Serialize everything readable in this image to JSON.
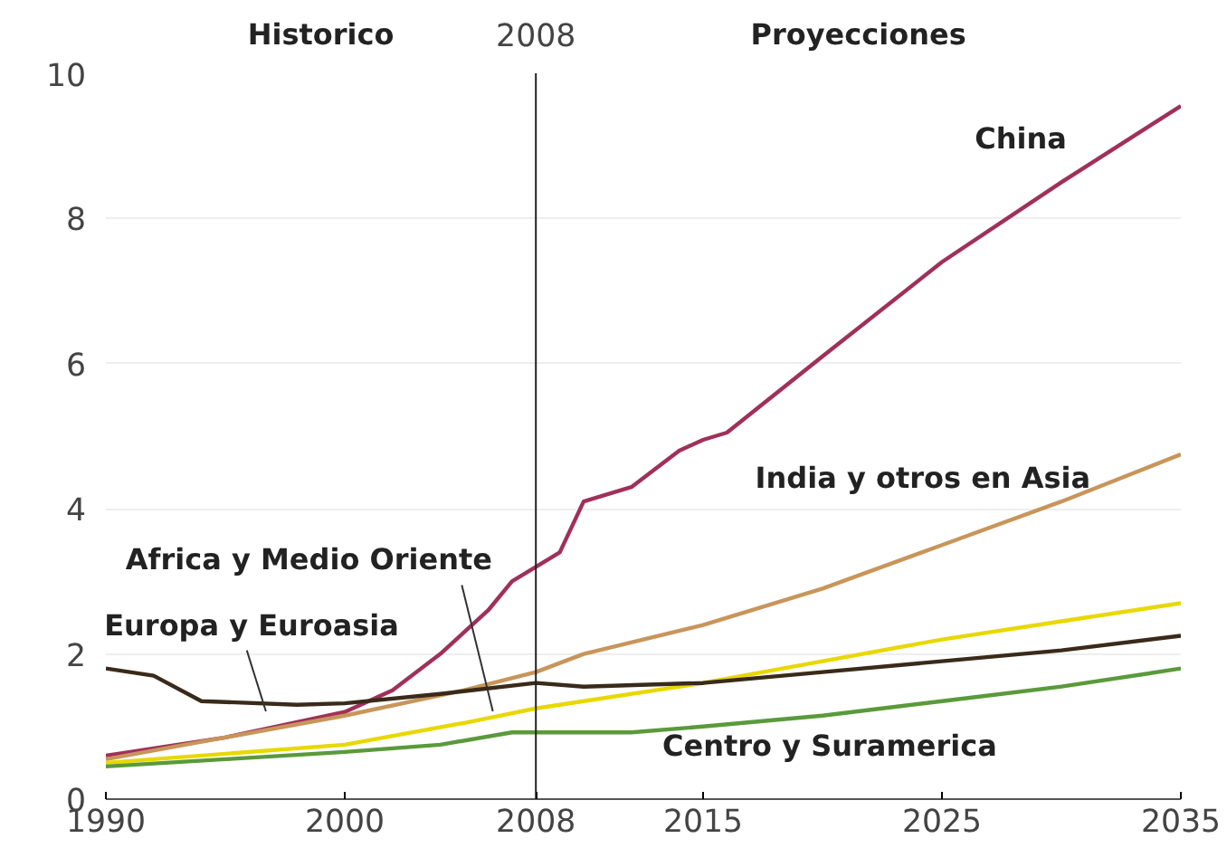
{
  "chart_data": {
    "type": "line",
    "xlim": [
      1990,
      2035
    ],
    "xticks": [
      1990,
      2000,
      2008,
      2015,
      2025,
      2035
    ],
    "ylim": [
      0,
      10
    ],
    "yticks": [
      0,
      2,
      4,
      6,
      8,
      10
    ],
    "grid": "y",
    "line_style": "solid",
    "marker": "none",
    "annotations": [
      "Historico",
      "Proyecciones"
    ],
    "ref_lines": [
      {
        "axis": "x",
        "value": 2008,
        "label": "2008",
        "color": "#222222"
      }
    ],
    "series": [
      {
        "name": "China",
        "color": "#a0305a",
        "x": [
          1990,
          1995,
          2000,
          2002,
          2004,
          2006,
          2007,
          2008,
          2009,
          2010,
          2012,
          2014,
          2015,
          2016,
          2020,
          2025,
          2030,
          2035
        ],
        "values": [
          0.6,
          0.85,
          1.2,
          1.5,
          2.0,
          2.6,
          3.0,
          3.2,
          3.4,
          4.1,
          4.3,
          4.8,
          4.95,
          5.05,
          6.1,
          7.4,
          8.5,
          9.55
        ]
      },
      {
        "name": "India y otros en Asia",
        "color": "#c8955a",
        "x": [
          1990,
          2000,
          2005,
          2008,
          2010,
          2015,
          2020,
          2025,
          2030,
          2035
        ],
        "values": [
          0.55,
          1.15,
          1.5,
          1.75,
          2.0,
          2.4,
          2.9,
          3.5,
          4.1,
          4.75
        ]
      },
      {
        "name": "Africa y Medio Oriente",
        "color": "#e8d800",
        "x": [
          1990,
          2000,
          2005,
          2008,
          2010,
          2015,
          2020,
          2025,
          2030,
          2035
        ],
        "values": [
          0.5,
          0.75,
          1.05,
          1.25,
          1.35,
          1.6,
          1.9,
          2.2,
          2.45,
          2.7
        ]
      },
      {
        "name": "Europa y Euroasia",
        "color": "#3a2a1a",
        "x": [
          1990,
          1992,
          1994,
          1998,
          2000,
          2004,
          2008,
          2010,
          2015,
          2020,
          2025,
          2030,
          2035
        ],
        "values": [
          1.8,
          1.7,
          1.35,
          1.3,
          1.32,
          1.45,
          1.6,
          1.55,
          1.6,
          1.75,
          1.9,
          2.05,
          2.25
        ]
      },
      {
        "name": "Centro y Suramerica",
        "color": "#5a9a3a",
        "x": [
          1990,
          1995,
          2000,
          2004,
          2007,
          2008,
          2012,
          2015,
          2020,
          2025,
          2030,
          2035
        ],
        "values": [
          0.45,
          0.55,
          0.65,
          0.75,
          0.92,
          0.92,
          0.92,
          1.0,
          1.15,
          1.35,
          1.55,
          1.8
        ]
      }
    ]
  }
}
